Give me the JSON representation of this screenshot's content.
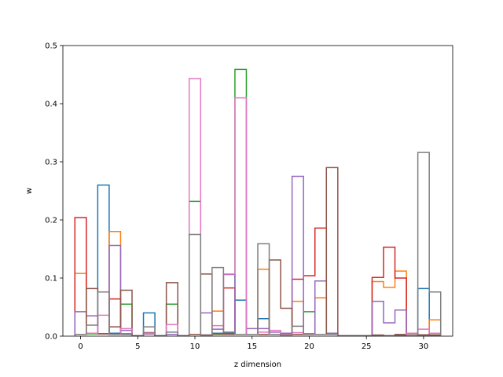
{
  "chart_data": {
    "type": "step",
    "title": "",
    "xlabel": "z dimension",
    "ylabel": "w",
    "xlim": [
      -1.55,
      32.55
    ],
    "ylim": [
      0,
      0.5
    ],
    "x_ticks": [
      0,
      5,
      10,
      15,
      20,
      25,
      30
    ],
    "y_ticks": [
      0.0,
      0.1,
      0.2,
      0.3,
      0.4,
      0.5
    ],
    "x_tick_labels": [
      "0",
      "5",
      "10",
      "15",
      "20",
      "25",
      "30"
    ],
    "y_tick_labels": [
      "0.0",
      "0.1",
      "0.2",
      "0.3",
      "0.4",
      "0.5"
    ],
    "grid": false,
    "legend": "none",
    "x": [
      0,
      1,
      2,
      3,
      4,
      5,
      6,
      7,
      8,
      9,
      10,
      11,
      12,
      13,
      14,
      15,
      16,
      17,
      18,
      19,
      20,
      21,
      22,
      23,
      24,
      25,
      26,
      27,
      28,
      29,
      30,
      31
    ],
    "series": [
      {
        "color": "#1f77b4",
        "values": [
          0.003,
          0.005,
          0.26,
          0.005,
          0.003,
          0.001,
          0.04,
          0.001,
          0.003,
          0.001,
          0.003,
          0.002,
          0.005,
          0.005,
          0.062,
          0.003,
          0.03,
          0.003,
          0.002,
          0.003,
          0.003,
          0.003,
          0.005,
          0.001,
          0.001,
          0.001,
          0.001,
          0.001,
          0.001,
          0.001,
          0.082,
          0.002
        ]
      },
      {
        "color": "#ff7f0e",
        "values": [
          0.108,
          0.004,
          0.004,
          0.18,
          0.004,
          0.001,
          0.004,
          0.001,
          0.003,
          0.001,
          0.003,
          0.002,
          0.043,
          0.003,
          0.003,
          0.003,
          0.115,
          0.003,
          0.002,
          0.06,
          0.003,
          0.066,
          0.003,
          0.001,
          0.001,
          0.001,
          0.094,
          0.084,
          0.112,
          0.001,
          0.002,
          0.028
        ]
      },
      {
        "color": "#2ca02c",
        "values": [
          0.003,
          0.004,
          0.004,
          0.003,
          0.055,
          0.001,
          0.004,
          0.001,
          0.055,
          0.001,
          0.232,
          0.002,
          0.003,
          0.003,
          0.459,
          0.003,
          0.003,
          0.003,
          0.002,
          0.003,
          0.042,
          0.003,
          0.003,
          0.001,
          0.001,
          0.001,
          0.001,
          0.001,
          0.001,
          0.001,
          0.002,
          0.002
        ]
      },
      {
        "color": "#d62728",
        "values": [
          0.204,
          0.005,
          0.004,
          0.064,
          0.004,
          0.001,
          0.004,
          0.001,
          0.003,
          0.001,
          0.003,
          0.002,
          0.004,
          0.083,
          0.003,
          0.003,
          0.003,
          0.003,
          0.002,
          0.098,
          0.104,
          0.186,
          0.003,
          0.001,
          0.001,
          0.001,
          0.101,
          0.153,
          0.1,
          0.001,
          0.002,
          0.002
        ]
      },
      {
        "color": "#9467bd",
        "values": [
          0.042,
          0.035,
          0.004,
          0.156,
          0.01,
          0.001,
          0.004,
          0.001,
          0.003,
          0.001,
          0.003,
          0.04,
          0.012,
          0.106,
          0.003,
          0.013,
          0.013,
          0.007,
          0.005,
          0.275,
          0.004,
          0.095,
          0.005,
          0.001,
          0.001,
          0.001,
          0.06,
          0.023,
          0.045,
          0.001,
          0.002,
          0.005
        ]
      },
      {
        "color": "#8c564b",
        "values": [
          0.003,
          0.082,
          0.004,
          0.016,
          0.079,
          0.001,
          0.006,
          0.001,
          0.092,
          0.001,
          0.003,
          0.107,
          0.004,
          0.003,
          0.003,
          0.003,
          0.003,
          0.131,
          0.048,
          0.003,
          0.003,
          0.003,
          0.29,
          0.001,
          0.001,
          0.001,
          0.002,
          0.001,
          0.003,
          0.004,
          0.002,
          0.002
        ]
      },
      {
        "color": "#e377c2",
        "values": [
          0.003,
          0.005,
          0.036,
          0.003,
          0.013,
          0.001,
          0.005,
          0.001,
          0.02,
          0.001,
          0.443,
          0.002,
          0.018,
          0.107,
          0.41,
          0.003,
          0.007,
          0.01,
          0.002,
          0.006,
          0.004,
          0.003,
          0.003,
          0.001,
          0.001,
          0.001,
          0.001,
          0.001,
          0.001,
          0.005,
          0.012,
          0.005
        ]
      },
      {
        "color": "#7f7f7f",
        "values": [
          0.003,
          0.019,
          0.076,
          0.003,
          0.004,
          0.001,
          0.016,
          0.001,
          0.007,
          0.001,
          0.175,
          0.002,
          0.118,
          0.007,
          0.003,
          0.003,
          0.159,
          0.003,
          0.004,
          0.017,
          0.004,
          0.003,
          0.003,
          0.001,
          0.001,
          0.001,
          0.001,
          0.001,
          0.001,
          0.001,
          0.316,
          0.076
        ]
      }
    ]
  }
}
